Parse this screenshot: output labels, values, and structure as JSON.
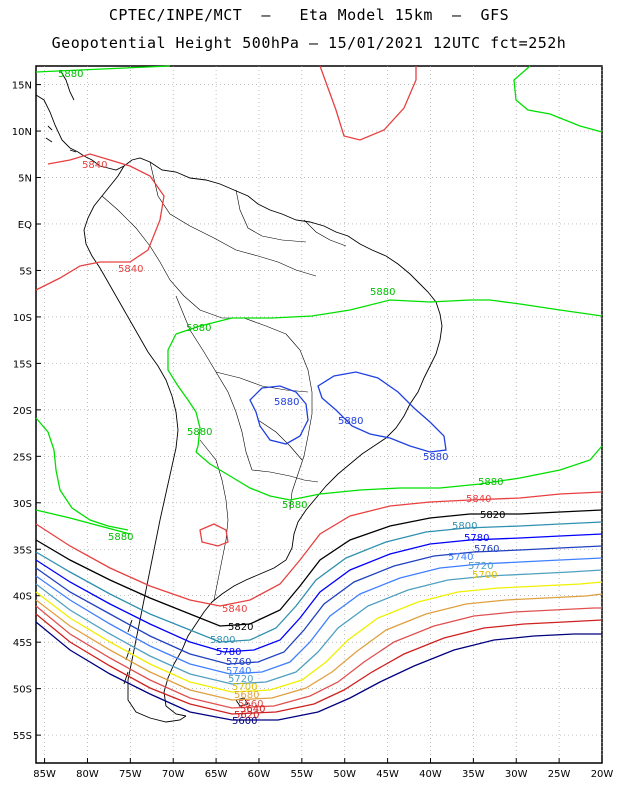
{
  "title_line1": "CPTEC/INPE/MCT  –   Eta Model 15km  –  GFS",
  "title_line2": "Geopotential Height 500hPa – 15/01/2021 12UTC fct=252h",
  "map": {
    "lon_range": [
      -86,
      -20
    ],
    "lat_range": [
      17,
      -58
    ],
    "lat_ticks": [
      "15N",
      "10N",
      "5N",
      "EQ",
      "5S",
      "10S",
      "15S",
      "20S",
      "25S",
      "30S",
      "35S",
      "40S",
      "45S",
      "50S",
      "55S"
    ],
    "lon_ticks": [
      "85W",
      "80W",
      "75W",
      "70W",
      "65W",
      "60W",
      "55W",
      "50W",
      "45W",
      "40W",
      "35W",
      "30W",
      "25W",
      "20W"
    ],
    "grid": true
  },
  "contour_levels": [
    {
      "value": "5880",
      "color": "#00e000"
    },
    {
      "value": "5840",
      "color": "#e84040"
    },
    {
      "value": "5820",
      "color": "#000000"
    },
    {
      "value": "5800",
      "color": "#3090b0"
    },
    {
      "value": "5780",
      "color": "#0000ff"
    },
    {
      "value": "5760",
      "color": "#2040c0"
    },
    {
      "value": "5740",
      "color": "#4080ff"
    },
    {
      "value": "5720",
      "color": "#50a0c0"
    },
    {
      "value": "5700",
      "color": "#f0f000"
    },
    {
      "value": "5680",
      "color": "#e0a040"
    },
    {
      "value": "5660",
      "color": "#e05050"
    },
    {
      "value": "5640",
      "color": "#d02020"
    },
    {
      "value": "5620",
      "color": "#000080"
    }
  ],
  "labels": {
    "l5880": "5880",
    "l5840": "5840",
    "l5820": "5820",
    "l5800": "5800",
    "l5780": "5780",
    "l5760": "5760",
    "l5740": "5740",
    "l5720": "5720",
    "l5700": "5700",
    "l5680": "5680",
    "l5660": "5660",
    "l5640": "5640",
    "l5620": "5620",
    "l5600": "5600"
  }
}
